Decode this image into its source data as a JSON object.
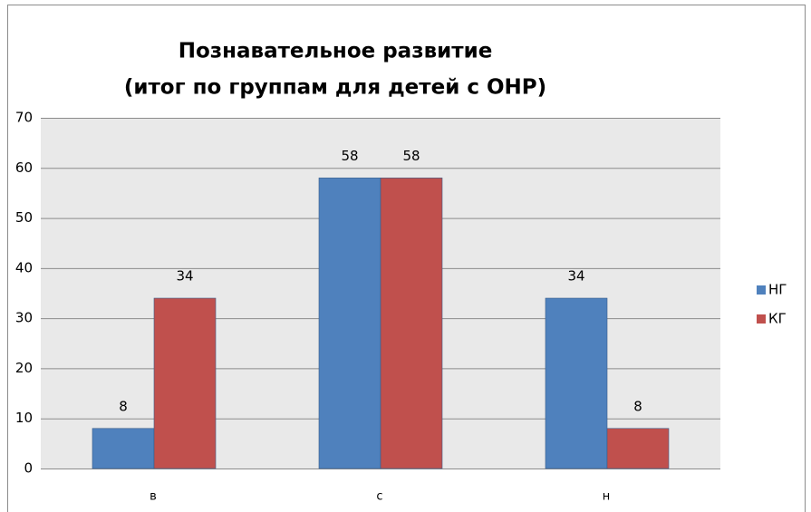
{
  "chart_data": {
    "type": "bar",
    "title": [
      "Познавательное развитие",
      "(итог по группам для детей с ОНР)"
    ],
    "categories": [
      "в",
      "с",
      "н"
    ],
    "series": [
      {
        "name": "НГ",
        "color": "#4f81bd",
        "values": [
          8,
          58,
          34
        ]
      },
      {
        "name": "КГ",
        "color": "#c0504d",
        "values": [
          34,
          58,
          8
        ]
      }
    ],
    "ylim": [
      0,
      70
    ],
    "yticks": [
      0,
      10,
      20,
      30,
      40,
      50,
      60,
      70
    ],
    "grid": true,
    "legend": "right"
  }
}
